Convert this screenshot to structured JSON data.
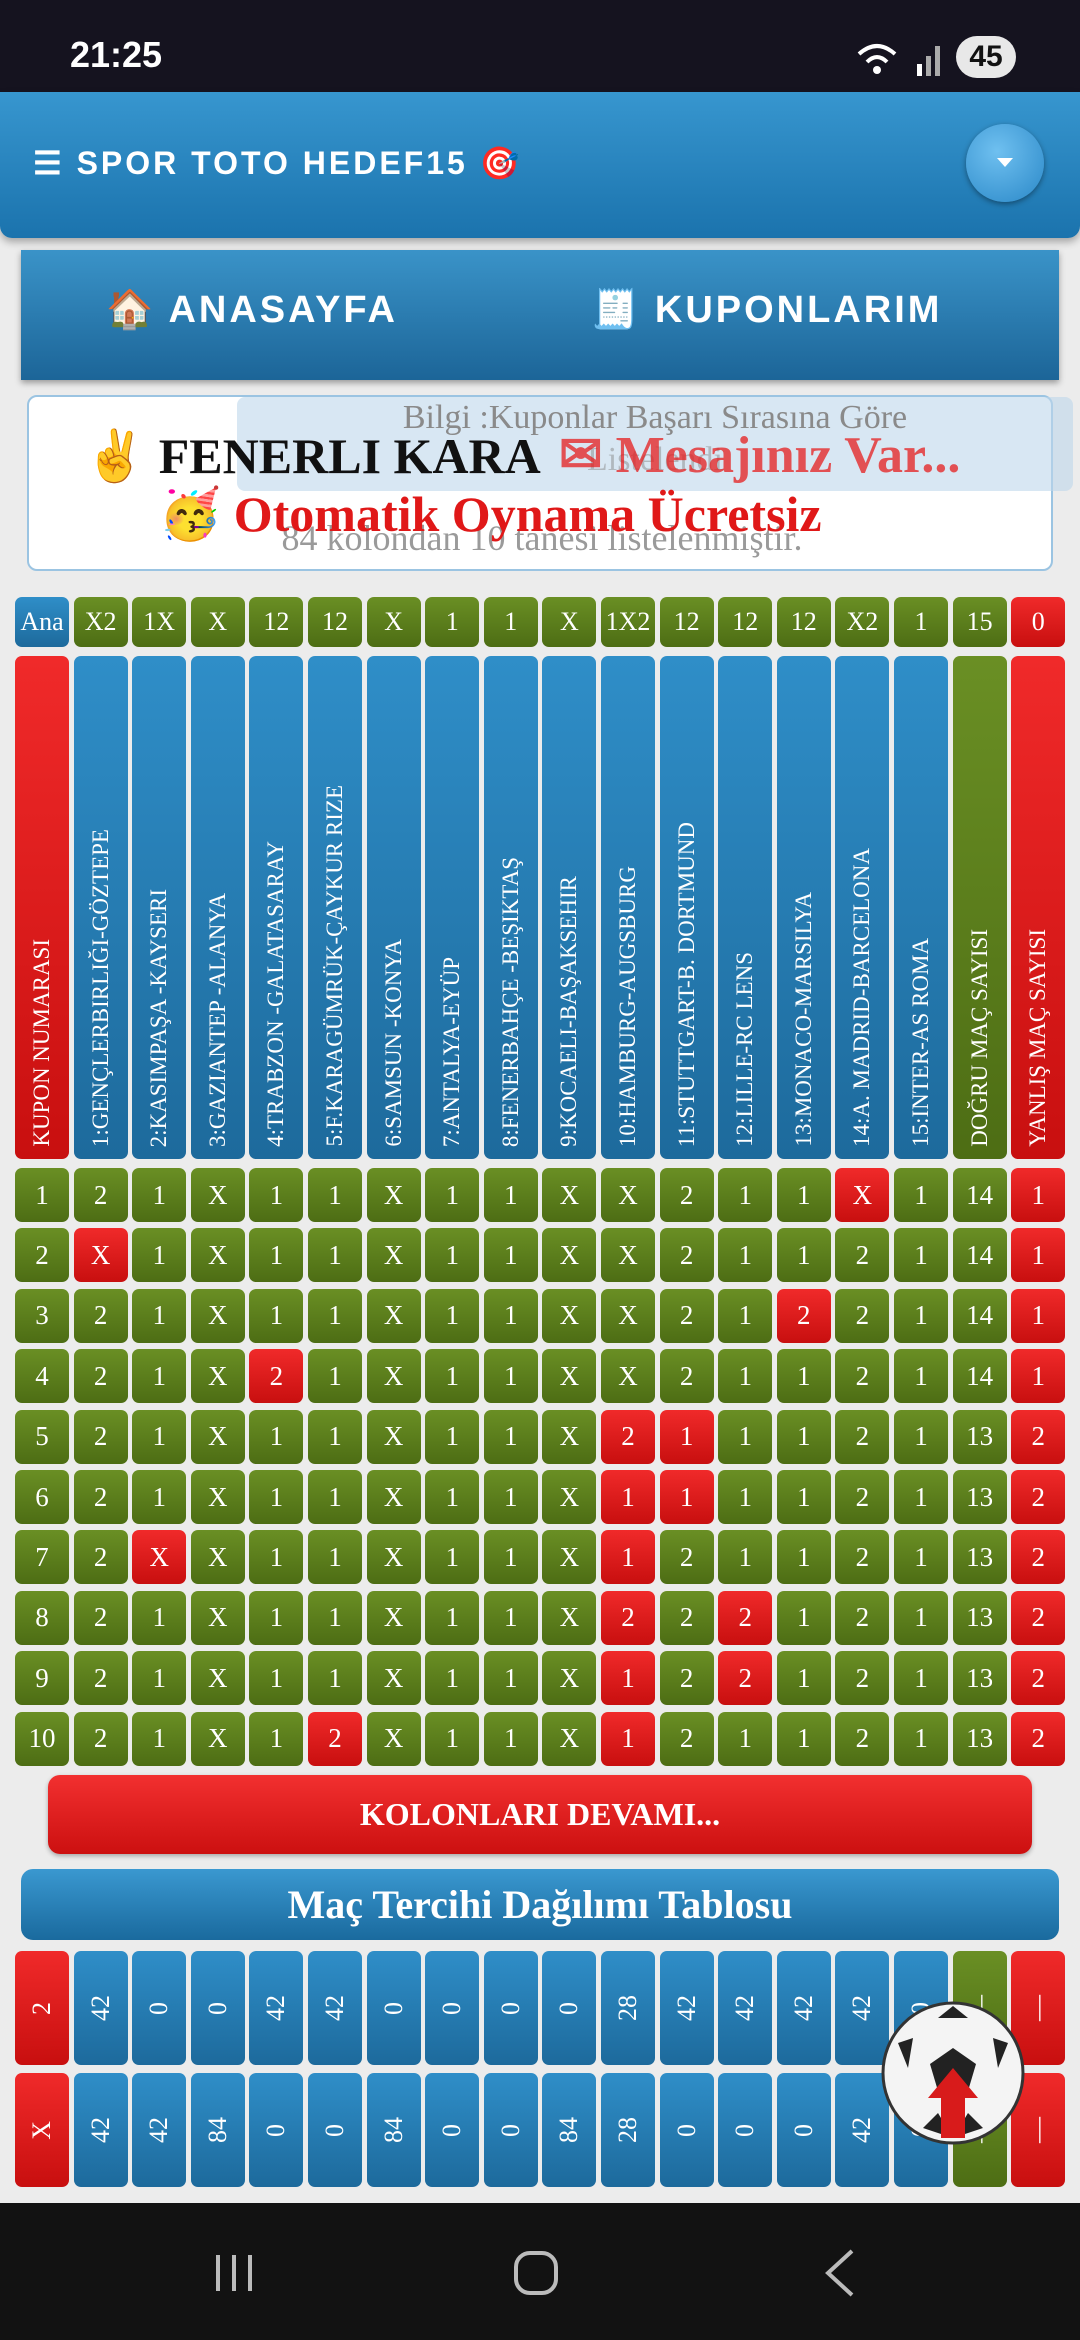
{
  "status_bar": {
    "time": "21:25",
    "battery": "45"
  },
  "app_bar": {
    "title": "☰ SPOR TOTO HEDEF15 🎯"
  },
  "nav": [
    "🏠 ANASAYFA",
    "🧾 KUPONLARIM"
  ],
  "info": {
    "notice": "Bilgi :Kuponlar Başarı Sırasına Göre",
    "notice_2": "Listelendi",
    "count": "84 kolondan 10 tanesi listelenmiştir."
  },
  "banner": {
    "user": "✌️ FENERLI KARA",
    "message": "✉ Mesajınız Var...",
    "promo": "🥳 Otomatik Oynama Ücretsiz"
  },
  "table": {
    "header": [
      "Ana",
      "X2",
      "1X",
      "X",
      "12",
      "12",
      "X",
      "1",
      "1",
      "X",
      "1X2",
      "12",
      "12",
      "12",
      "X2",
      "1",
      "15",
      "0"
    ],
    "columns": [
      "KUPON NUMARASI",
      "1:GENÇLERBIRLIĞI-GÖZTEPE",
      "2:KASIMPAŞA -KAYSERI",
      "3:GAZIANTEP -ALANYA",
      "4:TRABZON -GALATASARAY",
      "5:F.KARAGÜMRÜK-ÇAYKUR RIZE",
      "6:SAMSUN -KONYA",
      "7:ANTALYA-EYÜP",
      "8:FENERBAHÇE -BEŞIKTAŞ",
      "9:KOCAELI-BAŞAKSEHIR",
      "10:HAMBURG-AUGSBURG",
      "11:STUTTGART-B. DORTMUND",
      "12:LILLE-RC LENS",
      "13:MONACO-MARSILYA",
      "14:A. MADRID-BARCELONA",
      "15:INTER-AS ROMA",
      "DOĞRU MAÇ SAYISI",
      "YANLIŞ MAÇ SAYISI"
    ],
    "rows": [
      {
        "cells": [
          "1",
          "2",
          "1",
          "X",
          "1",
          "1",
          "X",
          "1",
          "1",
          "X",
          "X",
          "2",
          "1",
          "1",
          "X",
          "1",
          "14",
          "1"
        ],
        "red": [
          14
        ]
      },
      {
        "cells": [
          "2",
          "X",
          "1",
          "X",
          "1",
          "1",
          "X",
          "1",
          "1",
          "X",
          "X",
          "2",
          "1",
          "1",
          "2",
          "1",
          "14",
          "1"
        ],
        "red": [
          1
        ]
      },
      {
        "cells": [
          "3",
          "2",
          "1",
          "X",
          "1",
          "1",
          "X",
          "1",
          "1",
          "X",
          "X",
          "2",
          "1",
          "2",
          "2",
          "1",
          "14",
          "1"
        ],
        "red": [
          13
        ]
      },
      {
        "cells": [
          "4",
          "2",
          "1",
          "X",
          "2",
          "1",
          "X",
          "1",
          "1",
          "X",
          "X",
          "2",
          "1",
          "1",
          "2",
          "1",
          "14",
          "1"
        ],
        "red": [
          4
        ]
      },
      {
        "cells": [
          "5",
          "2",
          "1",
          "X",
          "1",
          "1",
          "X",
          "1",
          "1",
          "X",
          "2",
          "1",
          "1",
          "1",
          "2",
          "1",
          "13",
          "2"
        ],
        "red": [
          10,
          11
        ]
      },
      {
        "cells": [
          "6",
          "2",
          "1",
          "X",
          "1",
          "1",
          "X",
          "1",
          "1",
          "X",
          "1",
          "1",
          "1",
          "1",
          "2",
          "1",
          "13",
          "2"
        ],
        "red": [
          10,
          11
        ]
      },
      {
        "cells": [
          "7",
          "2",
          "X",
          "X",
          "1",
          "1",
          "X",
          "1",
          "1",
          "X",
          "1",
          "2",
          "1",
          "1",
          "2",
          "1",
          "13",
          "2"
        ],
        "red": [
          2,
          10
        ]
      },
      {
        "cells": [
          "8",
          "2",
          "1",
          "X",
          "1",
          "1",
          "X",
          "1",
          "1",
          "X",
          "2",
          "2",
          "2",
          "1",
          "2",
          "1",
          "13",
          "2"
        ],
        "red": [
          10,
          12
        ]
      },
      {
        "cells": [
          "9",
          "2",
          "1",
          "X",
          "1",
          "1",
          "X",
          "1",
          "1",
          "X",
          "1",
          "2",
          "2",
          "1",
          "2",
          "1",
          "13",
          "2"
        ],
        "red": [
          10,
          12
        ]
      },
      {
        "cells": [
          "10",
          "2",
          "1",
          "X",
          "1",
          "2",
          "X",
          "1",
          "1",
          "X",
          "1",
          "2",
          "1",
          "1",
          "2",
          "1",
          "13",
          "2"
        ],
        "red": [
          5,
          10
        ]
      }
    ]
  },
  "more_button": "KOLONLARI DEVAMI...",
  "distribution": {
    "title": "Maç Tercihi Dağılımı Tablosu",
    "rows": [
      [
        "2",
        "42",
        "0",
        "0",
        "42",
        "42",
        "0",
        "0",
        "0",
        "0",
        "28",
        "42",
        "42",
        "42",
        "42",
        "0",
        "—",
        "—"
      ],
      [
        "X",
        "42",
        "42",
        "84",
        "0",
        "0",
        "84",
        "0",
        "0",
        "84",
        "28",
        "0",
        "0",
        "0",
        "42",
        "0",
        "—",
        "—"
      ]
    ]
  }
}
